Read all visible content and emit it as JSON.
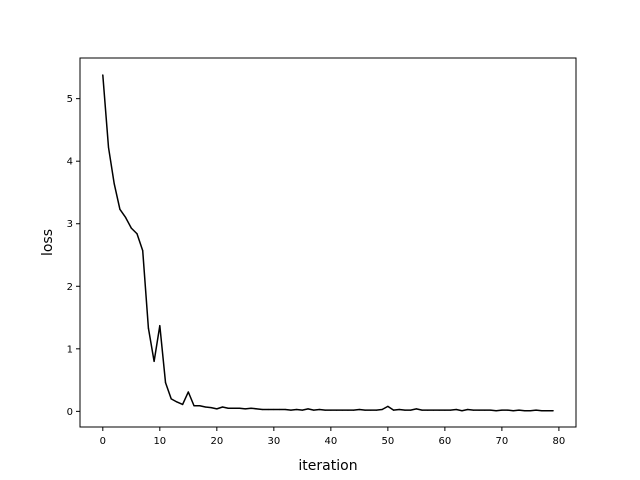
{
  "chart_data": {
    "type": "line",
    "title": "",
    "xlabel": "iteration",
    "ylabel": "loss",
    "xlim": [
      -4,
      83
    ],
    "ylim": [
      -0.25,
      5.65
    ],
    "grid": false,
    "x_ticks": [
      0,
      10,
      20,
      30,
      40,
      50,
      60,
      70,
      80
    ],
    "y_ticks": [
      0,
      1,
      2,
      3,
      4,
      5
    ],
    "line_color": "#000000",
    "series": [
      {
        "x": [
          0,
          1,
          2,
          3,
          4,
          5,
          6,
          7,
          8,
          9,
          10,
          11,
          12,
          13,
          14,
          15,
          16,
          17,
          18,
          19,
          20,
          21,
          22,
          23,
          24,
          25,
          26,
          27,
          28,
          29,
          30,
          31,
          32,
          33,
          34,
          35,
          36,
          37,
          38,
          39,
          40,
          41,
          42,
          43,
          44,
          45,
          46,
          47,
          48,
          49,
          50,
          51,
          52,
          53,
          54,
          55,
          56,
          57,
          58,
          59,
          60,
          61,
          62,
          63,
          64,
          65,
          66,
          67,
          68,
          69,
          70,
          71,
          72,
          73,
          74,
          75,
          76,
          77,
          78,
          79
        ],
        "values": [
          5.38,
          4.22,
          3.64,
          3.23,
          3.1,
          2.93,
          2.84,
          2.57,
          1.33,
          0.8,
          1.37,
          0.46,
          0.2,
          0.15,
          0.11,
          0.31,
          0.09,
          0.09,
          0.07,
          0.06,
          0.04,
          0.07,
          0.05,
          0.05,
          0.05,
          0.04,
          0.05,
          0.04,
          0.03,
          0.03,
          0.03,
          0.03,
          0.03,
          0.02,
          0.03,
          0.02,
          0.04,
          0.02,
          0.03,
          0.02,
          0.02,
          0.02,
          0.02,
          0.02,
          0.02,
          0.03,
          0.02,
          0.02,
          0.02,
          0.03,
          0.08,
          0.02,
          0.03,
          0.02,
          0.02,
          0.04,
          0.02,
          0.02,
          0.02,
          0.02,
          0.02,
          0.02,
          0.03,
          0.01,
          0.03,
          0.02,
          0.02,
          0.02,
          0.02,
          0.01,
          0.02,
          0.02,
          0.01,
          0.02,
          0.01,
          0.01,
          0.02,
          0.01,
          0.01,
          0.01
        ]
      }
    ]
  }
}
